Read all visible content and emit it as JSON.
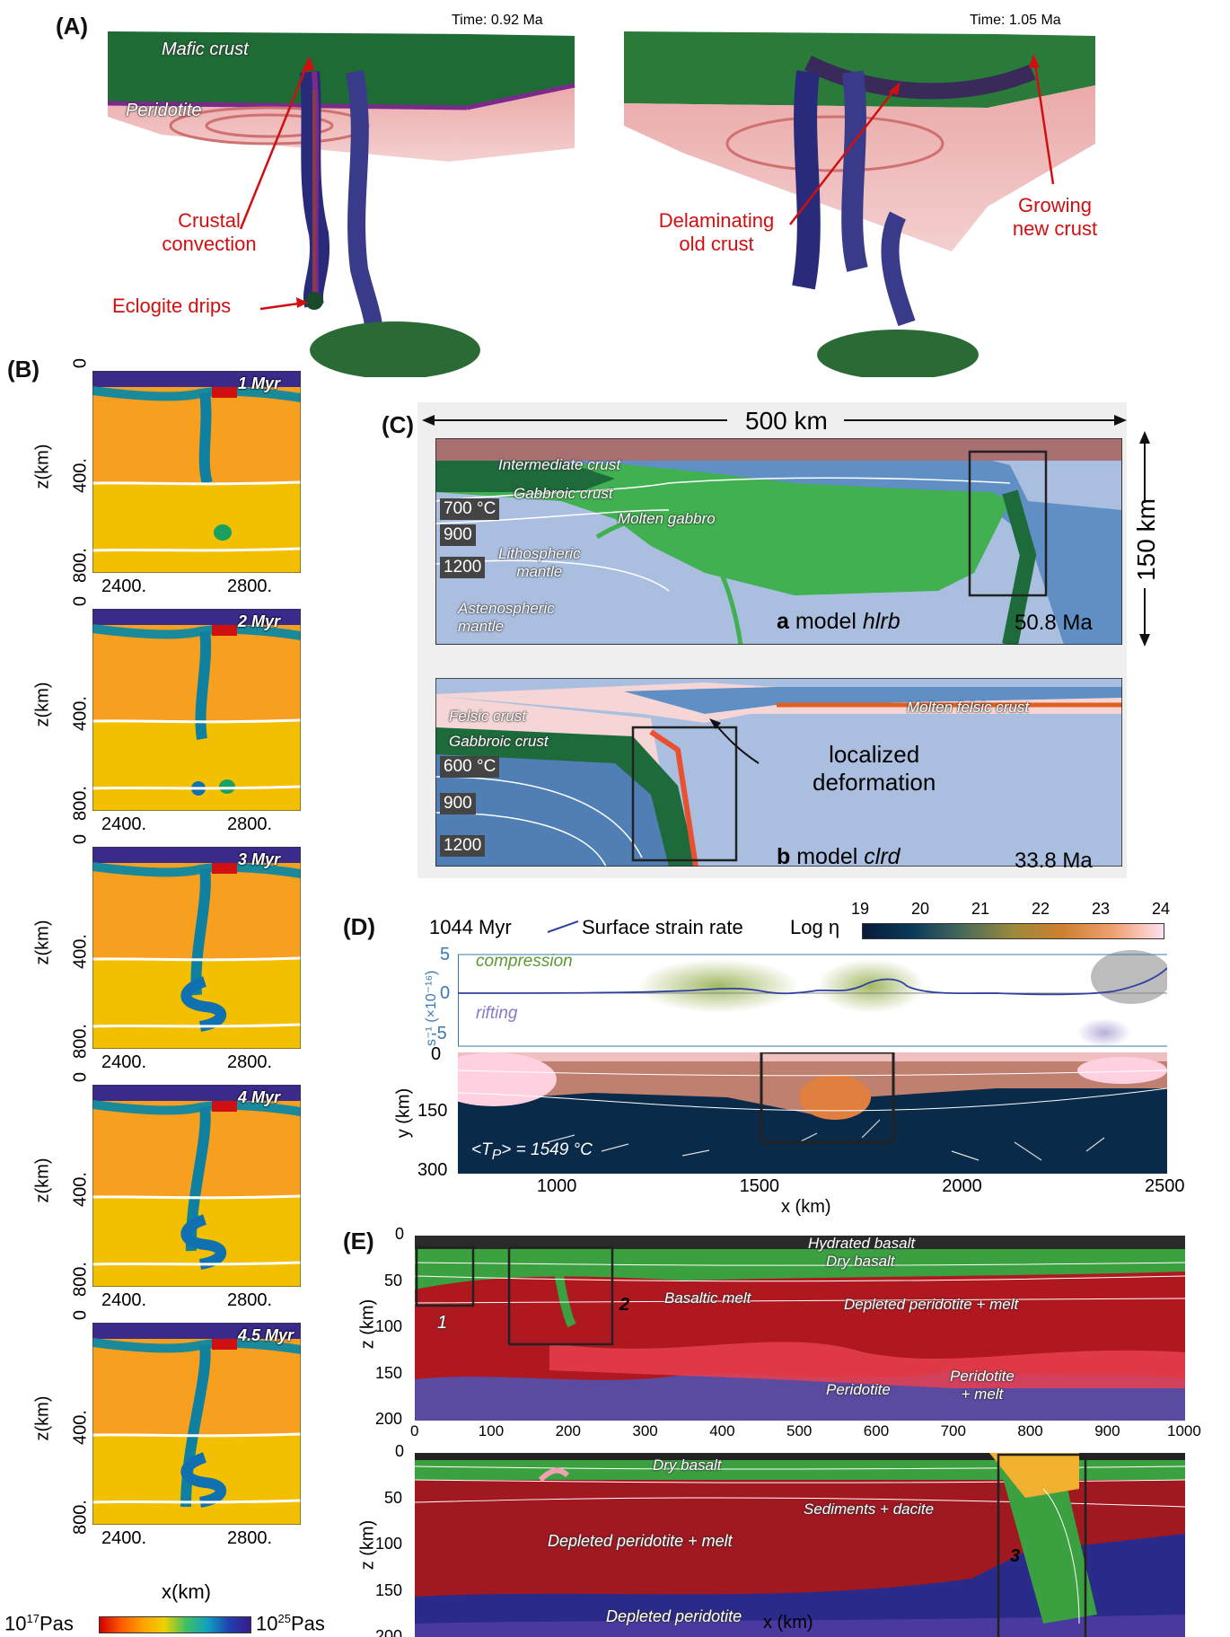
{
  "panel_a": {
    "label": "(A)",
    "time_left": "Time: 0.92 Ma",
    "time_right": "Time: 1.05 Ma",
    "mafic_crust": "Mafic crust",
    "peridotite": "Peridotite",
    "crustal_convection_1": "Crustal",
    "crustal_convection_2": "convection",
    "eclogite_drips": "Eclogite drips",
    "delaminating_1": "Delaminating",
    "delaminating_2": "old crust",
    "growing_1": "Growing",
    "growing_2": "new crust"
  },
  "panel_b": {
    "label": "(B)",
    "ylabel": "z(km)",
    "xlabel": "x(km)",
    "yticks": [
      "0",
      "400.",
      "800."
    ],
    "xticks": [
      "2400.",
      "2800."
    ],
    "times": [
      "1 Myr",
      "2 Myr",
      "3 Myr",
      "4 Myr",
      "4.5 Myr"
    ],
    "colorbar_low_base": "10",
    "colorbar_low_exp": "17",
    "colorbar_low_unit": "Pas",
    "colorbar_high_base": "10",
    "colorbar_high_exp": "25",
    "colorbar_high_unit": "Pas"
  },
  "panel_c": {
    "label": "(C)",
    "width_label": "500 km",
    "height_label": "150 km",
    "a": {
      "intermediate_crust": "Intermediate crust",
      "gabbroic_crust": "Gabbroic crust",
      "molten_gabbro": "Molten gabbro",
      "lithospheric_mantle_1": "Lithospheric",
      "lithospheric_mantle_2": "mantle",
      "asthenospheric_1": "Astenospheric",
      "asthenospheric_2": "mantle",
      "temps": [
        "700 °C",
        "900",
        "1200"
      ],
      "letter": "a",
      "model_prefix": "model ",
      "model_name": "hlrb",
      "age": "50.8 Ma"
    },
    "b": {
      "felsic_crust": "Felsic crust",
      "gabbroic_crust": "Gabbroic crust",
      "molten_felsic": "Molten felsic crust",
      "localized_1": "localized",
      "localized_2": "deformation",
      "temps": [
        "600 °C",
        "900",
        "1200"
      ],
      "letter": "b",
      "model_prefix": "model ",
      "model_name": "clrd",
      "age": "33.8 Ma"
    }
  },
  "panel_d": {
    "label": "(D)",
    "time": "1044 Myr",
    "legend": "Surface strain rate",
    "log_eta": "Log η",
    "cbar_ticks": [
      "19",
      "20",
      "21",
      "22",
      "23",
      "24"
    ],
    "compression": "compression",
    "rifting": "rifting",
    "strain_yticks": [
      "5",
      "0",
      "-5"
    ],
    "strain_ylabel": "s⁻¹ (×10⁻¹⁶)",
    "yticks": [
      "0",
      "150",
      "300"
    ],
    "ylabel": "y (km)",
    "xticks": [
      "1000",
      "1500",
      "2000",
      "2500"
    ],
    "xlabel": "x (km)",
    "tp": "<T",
    "tp_sub": "P",
    "tp_val": "> = 1549 °C"
  },
  "panel_e": {
    "label": "(E)",
    "ylabel": "z (km)",
    "xlabel": "x (km)",
    "yticks": [
      "0",
      "50",
      "100",
      "150",
      "200"
    ],
    "xticks": [
      "0",
      "100",
      "200",
      "300",
      "400",
      "500",
      "600",
      "700",
      "800",
      "900",
      "1000"
    ],
    "top": {
      "hydrated_basalt": "Hydrated basalt",
      "dry_basalt": "Dry basalt",
      "basaltic_melt": "Basaltic melt",
      "depleted_melt": "Depleted peridotite + melt",
      "peridotite": "Peridotite",
      "peridotite_melt_1": "Peridotite",
      "peridotite_melt_2": "+ melt",
      "box1": "1",
      "box2": "2"
    },
    "bottom": {
      "dry_basalt": "Dry basalt",
      "sediments": "Sediments + dacite",
      "depleted_melt": "Depleted peridotite + melt",
      "depleted": "Depleted peridotite",
      "box3": "3"
    }
  }
}
